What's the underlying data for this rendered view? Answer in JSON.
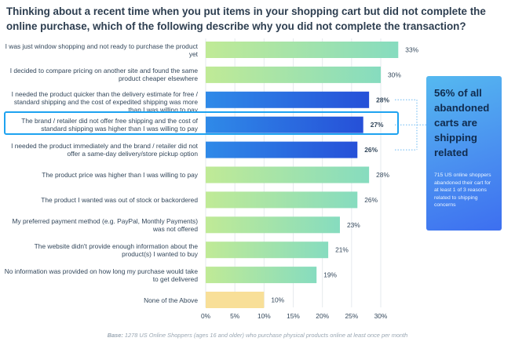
{
  "title": "Thinking about a recent time when you put items in your shopping cart but did not complete the online purchase, which of the following describe why you did not complete the transaction?",
  "chart_data": {
    "type": "bar",
    "orientation": "horizontal",
    "categories": [
      "I was just window shopping and not ready to purchase the product yet",
      "I decided to compare pricing on another site and found the same product cheaper elsewhere",
      "I needed the product quicker than the delivery estimate for free / standard shipping and the cost of expedited shipping was more than I was willing to pay",
      "The brand / retailer did not offer free shipping and the cost of standard shipping was higher than I was willing to pay",
      "I needed the product immediately and the brand / retailer did not offer a same-day delivery/store pickup option",
      "The product price was higher than I was willing to pay",
      "The product I wanted was out of stock or backordered",
      "My preferred payment method (e.g. PayPal, Monthly Payments) was not offered",
      "The website didn't provide enough information about the product(s) I wanted to buy",
      "No information was provided on how long my purchase would take to get delivered",
      "None of the Above"
    ],
    "values": [
      33,
      30,
      28,
      27,
      26,
      28,
      26,
      23,
      21,
      19,
      10
    ],
    "value_labels": [
      "33%",
      "30%",
      "28%",
      "27%",
      "26%",
      "28%",
      "26%",
      "23%",
      "21%",
      "19%",
      "10%"
    ],
    "shipping_related": [
      false,
      false,
      true,
      true,
      true,
      false,
      false,
      false,
      false,
      false,
      false
    ],
    "highlighted_index": 3,
    "xlim": [
      0,
      30
    ],
    "xticks": [
      0,
      5,
      10,
      15,
      20,
      25,
      30
    ],
    "xtick_labels": [
      "0%",
      "5%",
      "10%",
      "15%",
      "20%",
      "25%",
      "30%"
    ],
    "colors": {
      "green_start": "#c0ea96",
      "green_end": "#86dcbf",
      "blue_start": "#2f8ae8",
      "blue_end": "#2650d8",
      "none_bar": "#f8df98",
      "grid": "#e6eaee"
    }
  },
  "callout": {
    "headline": "56% of all abandoned carts are shipping related",
    "body": "715 US online shoppers abandoned their cart for at least 1 of 3 reasons related to shipping concerns"
  },
  "footnote": {
    "prefix": "Base:",
    "text": " 1278 US Online Shoppers (ages 16 and older) who purchase physical products online at least once per month"
  }
}
